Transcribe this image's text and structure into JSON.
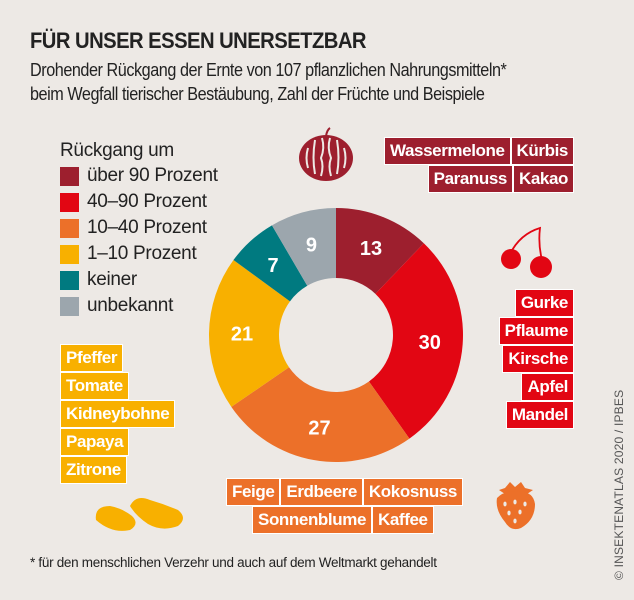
{
  "title": "FÜR UNSER ESSEN UNERSETZBAR",
  "subtitle": [
    "Drohender Rückgang der Ernte von 107 pflanzlichen Nahrungsmitteln*",
    "beim Wegfall tierischer Bestäubung, Zahl der Früchte und Beispiele"
  ],
  "legend": {
    "title": "Rückgang um",
    "items": [
      {
        "label": "über 90 Prozent",
        "color": "#9d1f2e"
      },
      {
        "label": "40–90 Prozent",
        "color": "#e20613"
      },
      {
        "label": "10–40 Prozent",
        "color": "#ec7029"
      },
      {
        "label": "1–10 Prozent",
        "color": "#f8b000"
      },
      {
        "label": "keiner",
        "color": "#007a80"
      },
      {
        "label": "unbekannt",
        "color": "#9ca6ad"
      }
    ]
  },
  "chart_data": {
    "type": "pie",
    "donut": true,
    "total": 107,
    "categories": [
      "über 90 Prozent",
      "40–90 Prozent",
      "10–40 Prozent",
      "1–10 Prozent",
      "keiner",
      "unbekannt"
    ],
    "values": [
      13,
      30,
      27,
      21,
      7,
      9
    ],
    "colors": [
      "#9d1f2e",
      "#e20613",
      "#ec7029",
      "#f8b000",
      "#007a80",
      "#9ca6ad"
    ],
    "start": "top",
    "direction": "clockwise"
  },
  "examples": {
    "dark_red": [
      [
        "Wassermelone",
        "Kürbis"
      ],
      [
        "Paranuss",
        "Kakao"
      ]
    ],
    "red": [
      "Gurke",
      "Pflaume",
      "Kirsche",
      "Apfel",
      "Mandel"
    ],
    "orange": [
      [
        "Feige",
        "Erdbeere",
        "Kokosnuss"
      ],
      [
        "Sonnenblume",
        "Kaffee"
      ]
    ],
    "yellow": [
      "Pfeffer",
      "Tomate",
      "Kidneybohne",
      "Papaya",
      "Zitrone"
    ]
  },
  "icons": [
    "watermelon-icon",
    "cherries-icon",
    "strawberry-icon",
    "beans-icon"
  ],
  "footnote": "* für den menschlichen Verzehr und auch auf dem Weltmarkt gehandelt",
  "credit": "© INSEKTENATLAS 2020 / IPBES"
}
